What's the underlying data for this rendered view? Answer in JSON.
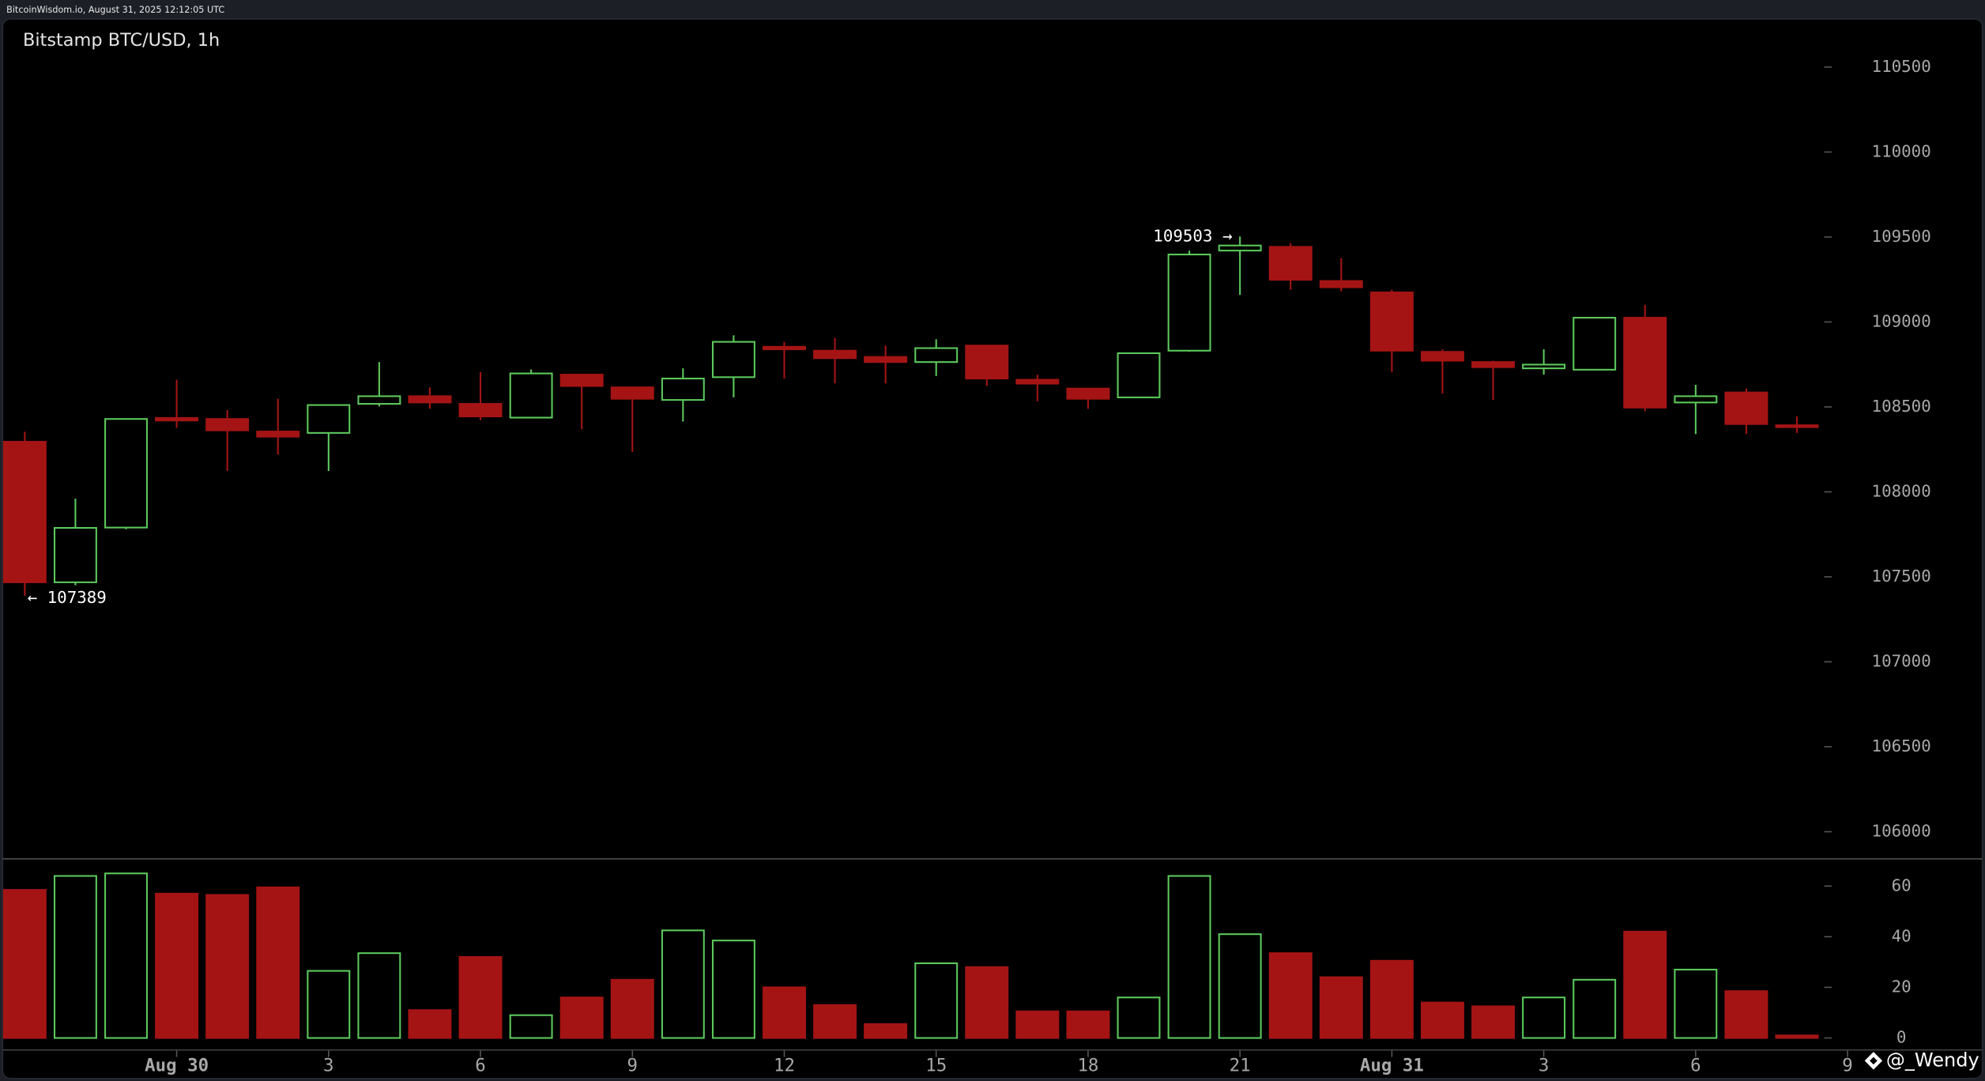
{
  "header": "BitcoinWisdom.io, August 31, 2025 12:12:05 UTC",
  "chart_data": {
    "type": "candlestick",
    "title": "Bitstamp BTC/USD, 1h",
    "categories": [
      null,
      null,
      null,
      "Aug 30",
      null,
      null,
      "3",
      null,
      null,
      "6",
      null,
      null,
      "9",
      null,
      null,
      "12",
      null,
      null,
      "15",
      null,
      null,
      "18",
      null,
      null,
      "21",
      null,
      null,
      "Aug 31",
      null,
      null,
      "3",
      null,
      null,
      "6",
      null,
      null,
      "9"
    ],
    "open": [
      108295,
      107468,
      107790,
      108435,
      108429,
      108355,
      108347,
      108518,
      108563,
      108518,
      108437,
      108690,
      108615,
      108541,
      108675,
      108854,
      108831,
      108794,
      108764,
      108861,
      108660,
      108608,
      108556,
      108831,
      109420,
      109442,
      109241,
      109174,
      108824,
      108764,
      108727,
      108719,
      109025,
      108526,
      108585,
      108392,
      null
    ],
    "high": [
      108354,
      107960,
      108429,
      108660,
      108481,
      108548,
      108511,
      108764,
      108615,
      108705,
      108720,
      108690,
      108615,
      108727,
      108921,
      108883,
      108906,
      108861,
      108898,
      108861,
      108690,
      108608,
      108816,
      109420,
      109503,
      109464,
      109375,
      109189,
      108839,
      108772,
      108839,
      109025,
      109100,
      108630,
      108608,
      108444,
      null
    ],
    "low": [
      107389,
      107450,
      107780,
      108377,
      108123,
      108220,
      108123,
      108503,
      108489,
      108422,
      108437,
      108369,
      108235,
      108414,
      108556,
      108667,
      108638,
      108638,
      108682,
      108623,
      108533,
      108489,
      108556,
      108824,
      109159,
      109189,
      109181,
      108705,
      108578,
      108541,
      108690,
      108719,
      108474,
      108340,
      108340,
      108347,
      null
    ],
    "close": [
      107468,
      107788,
      108429,
      108420,
      108362,
      108325,
      108511,
      108563,
      108526,
      108444,
      108697,
      108623,
      108548,
      108667,
      108883,
      108839,
      108787,
      108764,
      108846,
      108667,
      108637,
      108548,
      108816,
      109397,
      109450,
      109248,
      109204,
      108831,
      108772,
      108734,
      108749,
      109025,
      108496,
      108563,
      108399,
      108384,
      null
    ],
    "volume": [
      58.5,
      64,
      65,
      57,
      56.5,
      59.5,
      26.5,
      33.5,
      11,
      32,
      9,
      16,
      23,
      42.5,
      38.5,
      20,
      13,
      5.5,
      29.5,
      28,
      10.5,
      10.5,
      16,
      64,
      41,
      33.5,
      24,
      30.5,
      14,
      12.5,
      16,
      23,
      42,
      27,
      18.5,
      1,
      null
    ],
    "up_color": "#5cc85c",
    "down_color": "#a51414",
    "ylim": [
      105844,
      110783
    ],
    "yticks": [
      106000,
      106500,
      107000,
      107500,
      108000,
      108500,
      109000,
      109500,
      110000,
      110500
    ],
    "y2lim": [
      -5,
      71
    ],
    "y2ticks": [
      0,
      20,
      40,
      60
    ],
    "annotations": [
      {
        "value": 109503,
        "label": "109503 →"
      },
      {
        "value": 107389,
        "label": "← 107389"
      }
    ],
    "watermark": "@_Wendy"
  }
}
